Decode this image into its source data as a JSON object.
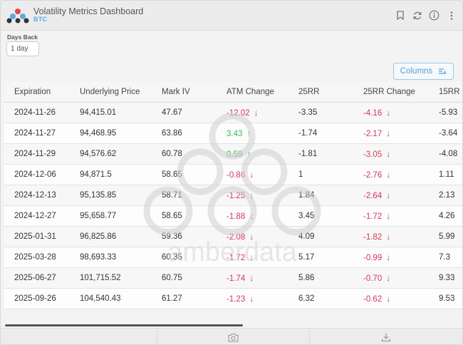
{
  "header": {
    "title": "Volatility Metrics Dashboard",
    "subtitle": "BTC",
    "icons": [
      "bookmark-icon",
      "refresh-icon",
      "info-icon",
      "more-vertical-icon"
    ]
  },
  "controls": {
    "days_back_label": "Days Back",
    "days_back_value": "1 day",
    "columns_label": "Columns"
  },
  "table": {
    "headers": [
      "Expiration",
      "Underlying Price",
      "Mark IV",
      "ATM Change",
      "25RR",
      "25RR Change",
      "15RR"
    ],
    "rows": [
      {
        "expiration": "2024-11-26",
        "underlying": "94,415.01",
        "mark_iv": "47.67",
        "atm_change": "-12.02",
        "atm_dir": "down",
        "rr25": "-3.35",
        "rr25_change": "-4.16",
        "rr25_dir": "down",
        "rr15": "-5.93"
      },
      {
        "expiration": "2024-11-27",
        "underlying": "94,468.95",
        "mark_iv": "63.86",
        "atm_change": "3.43",
        "atm_dir": "up",
        "rr25": "-1.74",
        "rr25_change": "-2.17",
        "rr25_dir": "down",
        "rr15": "-3.64"
      },
      {
        "expiration": "2024-11-29",
        "underlying": "94,576.62",
        "mark_iv": "60.78",
        "atm_change": "0.59",
        "atm_dir": "up",
        "rr25": "-1.81",
        "rr25_change": "-3.05",
        "rr25_dir": "down",
        "rr15": "-4.08"
      },
      {
        "expiration": "2024-12-06",
        "underlying": "94,871.5",
        "mark_iv": "58.65",
        "atm_change": "-0.86",
        "atm_dir": "down",
        "rr25": "1",
        "rr25_change": "-2.76",
        "rr25_dir": "down",
        "rr15": "1.11"
      },
      {
        "expiration": "2024-12-13",
        "underlying": "95,135.85",
        "mark_iv": "58.71",
        "atm_change": "-1.25",
        "atm_dir": "down",
        "rr25": "1.84",
        "rr25_change": "-2.64",
        "rr25_dir": "down",
        "rr15": "2.13"
      },
      {
        "expiration": "2024-12-27",
        "underlying": "95,658.77",
        "mark_iv": "58.65",
        "atm_change": "-1.88",
        "atm_dir": "down",
        "rr25": "3.45",
        "rr25_change": "-1.72",
        "rr25_dir": "down",
        "rr15": "4.26"
      },
      {
        "expiration": "2025-01-31",
        "underlying": "96,825.86",
        "mark_iv": "59.36",
        "atm_change": "-2.08",
        "atm_dir": "down",
        "rr25": "4.09",
        "rr25_change": "-1.82",
        "rr25_dir": "down",
        "rr15": "5.99"
      },
      {
        "expiration": "2025-03-28",
        "underlying": "98,693.33",
        "mark_iv": "60.35",
        "atm_change": "-1.72",
        "atm_dir": "down",
        "rr25": "5.17",
        "rr25_change": "-0.99",
        "rr25_dir": "down",
        "rr15": "7.3"
      },
      {
        "expiration": "2025-06-27",
        "underlying": "101,715.52",
        "mark_iv": "60.75",
        "atm_change": "-1.74",
        "atm_dir": "down",
        "rr25": "5.86",
        "rr25_change": "-0.70",
        "rr25_dir": "down",
        "rr15": "9.33"
      },
      {
        "expiration": "2025-09-26",
        "underlying": "104,540.43",
        "mark_iv": "61.27",
        "atm_change": "-1.23",
        "atm_dir": "down",
        "rr25": "6.32",
        "rr25_change": "-0.62",
        "rr25_dir": "down",
        "rr15": "9.53"
      }
    ]
  },
  "watermark": {
    "text": "amberdata"
  },
  "footer": {
    "icons": [
      "camera-icon",
      "download-icon"
    ]
  },
  "colors": {
    "negative": "#d6365a",
    "positive": "#3fb552",
    "accent": "#5a9fd6"
  }
}
